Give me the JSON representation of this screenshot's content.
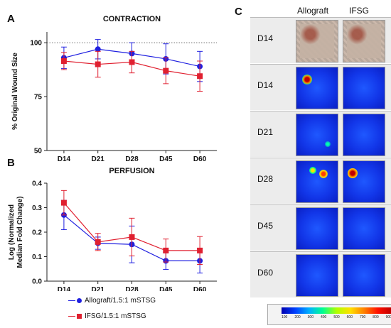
{
  "panels": {
    "a": "A",
    "b": "B",
    "c": "C"
  },
  "colors": {
    "allograft": "#1f1fe0",
    "ifsg": "#e02030"
  },
  "legend": {
    "allograft": "Allograft/1.5:1 mSTSG",
    "ifsg": "IFSG/1.5:1 mSTSG"
  },
  "chart_data": [
    {
      "type": "line",
      "title": "CONTRACTION",
      "ylabel": "% Original Wound Size",
      "categories": [
        "D14",
        "D21",
        "D28",
        "D45",
        "D60"
      ],
      "ylim": [
        50,
        105
      ],
      "yticks": [
        "50",
        "75",
        "100"
      ],
      "reference_line": 100,
      "series": [
        {
          "name": "Allograft/1.5:1 mSTSG",
          "values": [
            93,
            97,
            95,
            92.5,
            89
          ],
          "errors": [
            5,
            4.5,
            5,
            7,
            7
          ]
        },
        {
          "name": "IFSG/1.5:1 mSTSG",
          "values": [
            91.5,
            90,
            91,
            87,
            84.5
          ],
          "errors": [
            4,
            6,
            5,
            6,
            7
          ]
        }
      ]
    },
    {
      "type": "line",
      "title": "PERFUSION",
      "ylabel": "Log (Normalized Median Fold Change)",
      "categories": [
        "D14",
        "D21",
        "D28",
        "D45",
        "D60"
      ],
      "ylim": [
        0.0,
        0.4
      ],
      "yticks": [
        "0.0",
        "0.1",
        "0.2",
        "0.3",
        "0.4"
      ],
      "series": [
        {
          "name": "Allograft/1.5:1 mSTSG",
          "values": [
            0.27,
            0.155,
            0.15,
            0.083,
            0.083
          ],
          "errors": [
            0.06,
            0.025,
            0.075,
            0.035,
            0.05
          ]
        },
        {
          "name": "IFSG/1.5:1 mSTSG",
          "values": [
            0.32,
            0.16,
            0.18,
            0.125,
            0.125
          ],
          "errors": [
            0.05,
            0.035,
            0.077,
            0.047,
            0.057
          ]
        }
      ]
    }
  ],
  "heatmap_panel": {
    "columns": [
      "Allograft",
      "IFSG"
    ],
    "rows": [
      "D14",
      "D14",
      "D21",
      "D28",
      "D45",
      "D60"
    ],
    "colorbar_ticks": [
      "100",
      "200",
      "300",
      "400",
      "500",
      "600",
      "700",
      "800",
      "900"
    ]
  }
}
